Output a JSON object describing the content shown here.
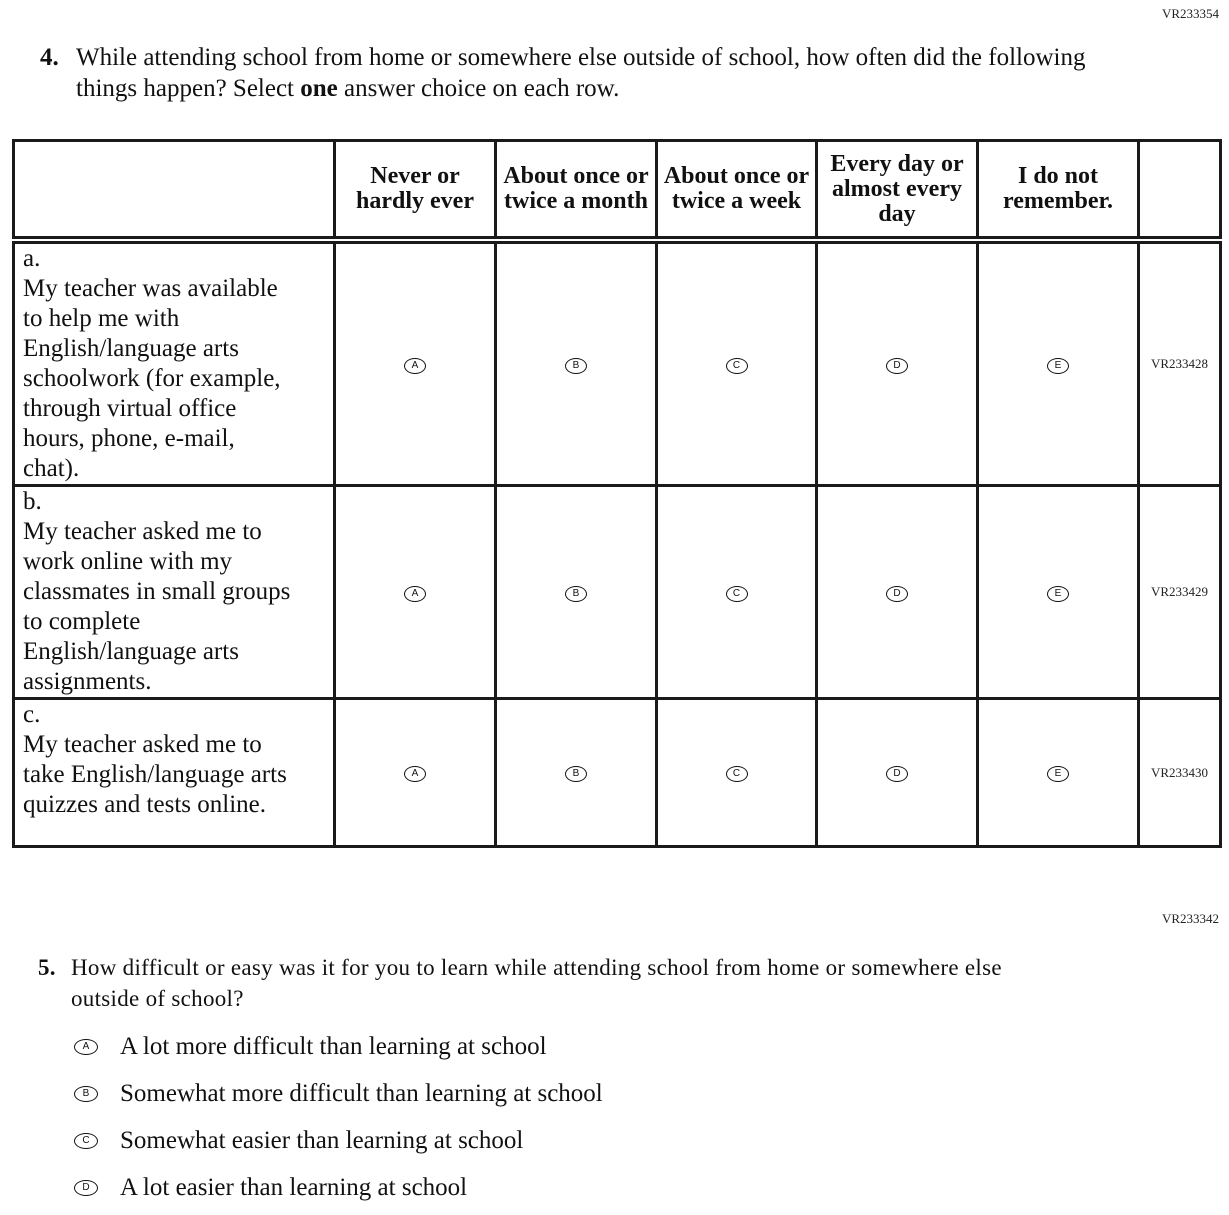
{
  "q4": {
    "code": "VR233354",
    "number": "4.",
    "text_parts": [
      "While attending school from home or somewhere else outside of school, how often did the following things happen? Select ",
      "one",
      " answer choice on each row."
    ],
    "columns": [
      "Never or hardly ever",
      "About once or twice a month",
      "About once or twice a week",
      "Every day or almost every day",
      "I do not remember."
    ],
    "choices": [
      "A",
      "B",
      "C",
      "D",
      "E"
    ],
    "rows": [
      {
        "letter": "a.",
        "text": "My teacher was available to help me with English/language arts schoolwork (for example, through virtual office hours, phone, e-mail, chat).",
        "code": "VR233428"
      },
      {
        "letter": "b.",
        "text": "My teacher asked me to work online with my classmates in small groups to complete English/language arts assignments.",
        "code": "VR233429"
      },
      {
        "letter": "c.",
        "text": "My teacher asked me to take English/language arts quizzes and tests online.",
        "code": "VR233430"
      }
    ]
  },
  "q5": {
    "code": "VR233342",
    "number": "5.",
    "text": "How difficult or easy was it for you to learn while attending school from home or somewhere else outside of school?",
    "options": [
      {
        "letter": "A",
        "text": "A lot more difficult than learning at school"
      },
      {
        "letter": "B",
        "text": "Somewhat more difficult than learning at school"
      },
      {
        "letter": "C",
        "text": "Somewhat easier than learning at school"
      },
      {
        "letter": "D",
        "text": "A lot easier than learning at school"
      }
    ]
  }
}
